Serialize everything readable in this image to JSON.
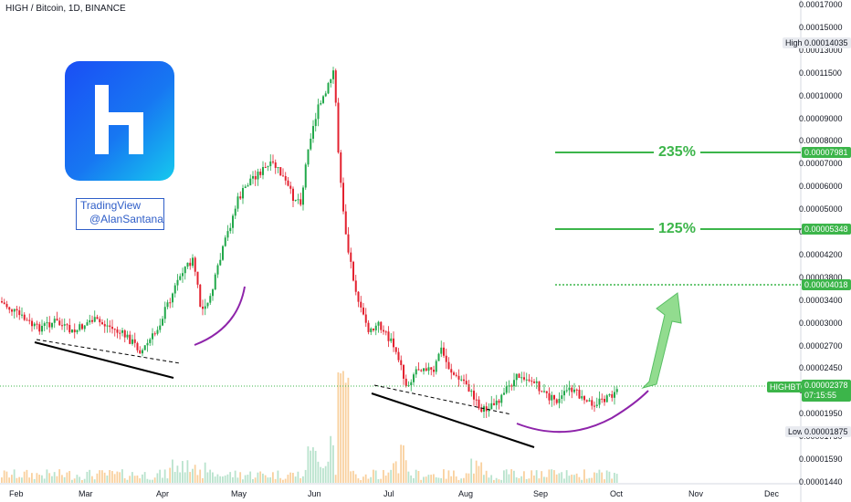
{
  "header": {
    "title": "HIGH / Bitcoin, 1D, BINANCE"
  },
  "watermark": {
    "line1": "TradingView",
    "line2": "@AlanSantana"
  },
  "colors": {
    "up": "#21a84a",
    "down": "#e3212f",
    "target": "#3cb54a",
    "curve": "#8e24aa",
    "volume_up": "#f7c486",
    "volume_down": "#f7b97a"
  },
  "price_axis": {
    "ticks": [
      "0.00017000",
      "0.00015000",
      "0.00013000",
      "0.00011500",
      "0.00010000",
      "0.00009000",
      "0.00008000",
      "0.00007000",
      "0.00006000",
      "0.00005000",
      "0.00004600",
      "0.00004200",
      "0.00003800",
      "0.00003400",
      "0.00003000",
      "0.00002700",
      "0.00002450",
      "0.00002200",
      "0.00001950",
      "0.00001750",
      "0.00001590",
      "0.00001440"
    ],
    "high_label": "High",
    "high_value": "0.00014035",
    "low_label": "Low",
    "low_value": "0.00001875",
    "symbol_tag": "HIGHBTC",
    "last_price": "0.00002378",
    "countdown": "07:15:55",
    "target_1": "0.00007981",
    "target_2": "0.00005348",
    "target_3": "0.00004018"
  },
  "time_axis": {
    "labels": [
      "Feb",
      "Mar",
      "Apr",
      "May",
      "Jun",
      "Jul",
      "Aug",
      "Sep",
      "Oct",
      "Nov",
      "Dec"
    ]
  },
  "annotations": {
    "pct_1": "235%",
    "pct_2": "125%"
  },
  "chart_data": {
    "type": "candlestick",
    "title": "HIGH / Bitcoin, 1D, BINANCE",
    "ylabel": "",
    "xlabel": "",
    "ylim": [
      1.44e-05,
      1.7e-05
    ],
    "x": [
      "Feb",
      "Mar",
      "Apr",
      "May",
      "Jun",
      "Jul",
      "Aug",
      "Sep",
      "Oct"
    ],
    "close_approx": [
      3.25e-05,
      2.9e-05,
      4.4e-05,
      7.1e-05,
      0.00014,
      3.2e-05,
      2.2e-05,
      2.25e-05,
      2.378e-05
    ],
    "high": 0.00014035,
    "low": 1.875e-05,
    "last": 2.378e-05,
    "targets": [
      {
        "label": "235%",
        "price": 7.981e-05
      },
      {
        "label": "125%",
        "price": 5.348e-05
      },
      {
        "label": "",
        "price": 4.018e-05
      }
    ]
  }
}
